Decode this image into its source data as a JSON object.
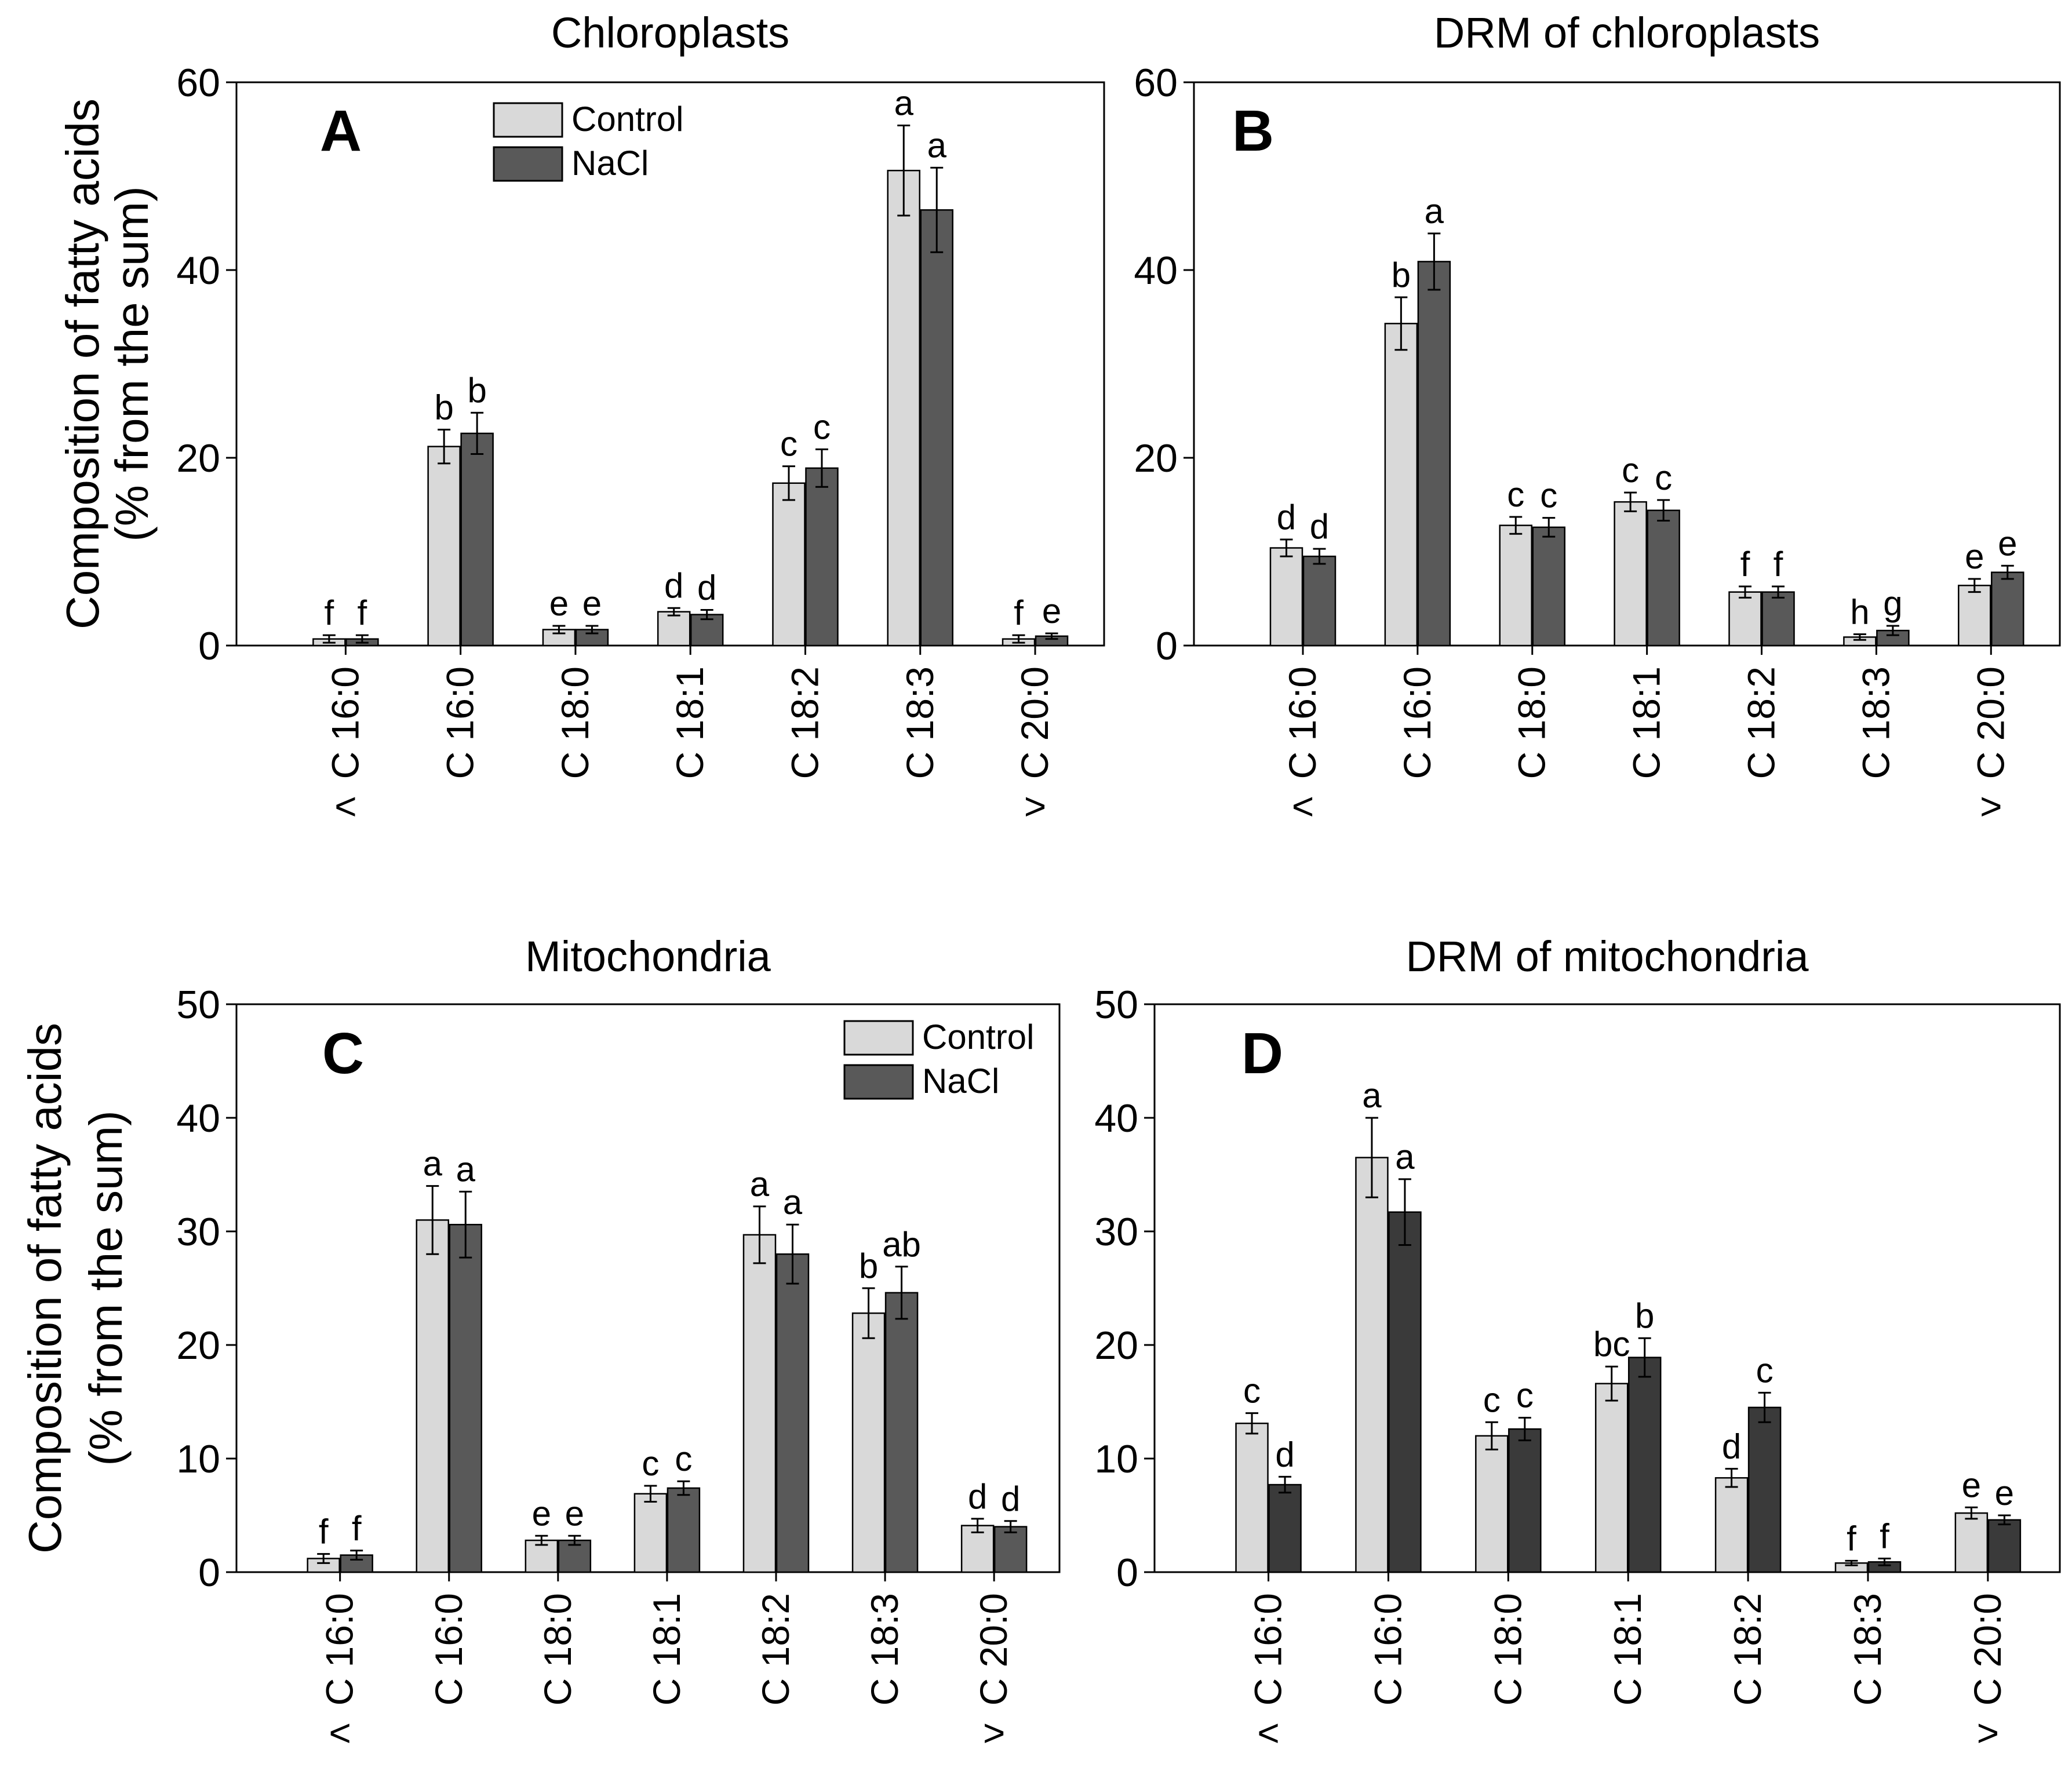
{
  "figure": {
    "ylabel_line1": "Composition of fatty acids",
    "ylabel_line2": "(% from the sum)",
    "colors": {
      "control": "#d9d9d9",
      "nacl": "#595959",
      "nacl_dark": "#3a3a3a"
    }
  },
  "chart_data": [
    {
      "panel": "A",
      "type": "bar",
      "title": "Chloroplasts",
      "ylabel": "Composition of fatty acids (% from the sum)",
      "ylim": [
        0,
        60
      ],
      "yticks": [
        0,
        20,
        40,
        60
      ],
      "categories": [
        "C 16:0",
        "C 16:0",
        "C 18:0",
        "C 18:1",
        "C 18:2",
        "C 18:3",
        "C 20:0"
      ],
      "category_marks": [
        "<",
        "",
        "",
        "",
        "",
        "",
        ">"
      ],
      "legend": [
        "Control",
        "NaCl"
      ],
      "series": [
        {
          "name": "Control",
          "values": [
            0.7,
            21.2,
            1.7,
            3.6,
            17.3,
            50.6,
            0.7
          ],
          "errors": [
            0.4,
            1.8,
            0.4,
            0.4,
            1.8,
            4.8,
            0.4
          ],
          "letters": [
            "f",
            "b",
            "e",
            "d",
            "c",
            "a",
            "f"
          ]
        },
        {
          "name": "NaCl",
          "values": [
            0.7,
            22.6,
            1.7,
            3.3,
            18.9,
            46.4,
            1.0
          ],
          "errors": [
            0.4,
            2.2,
            0.4,
            0.5,
            2.0,
            4.5,
            0.3
          ],
          "letters": [
            "f",
            "b",
            "e",
            "d",
            "c",
            "a",
            "e"
          ]
        }
      ]
    },
    {
      "panel": "B",
      "type": "bar",
      "title": "DRM of chloroplasts",
      "ylabel": "",
      "ylim": [
        0,
        60
      ],
      "yticks": [
        0,
        20,
        40,
        60
      ],
      "categories": [
        "C 16:0",
        "C 16:0",
        "C 18:0",
        "C 18:1",
        "C 18:2",
        "C 18:3",
        "C 20:0"
      ],
      "category_marks": [
        "<",
        "",
        "",
        "",
        "",
        "",
        ">"
      ],
      "legend": [],
      "series": [
        {
          "name": "Control",
          "values": [
            10.4,
            34.3,
            12.8,
            15.3,
            5.7,
            0.9,
            6.4
          ],
          "errors": [
            0.9,
            2.8,
            0.9,
            1.0,
            0.6,
            0.3,
            0.7
          ],
          "letters": [
            "d",
            "b",
            "c",
            "c",
            "f",
            "h",
            "e"
          ]
        },
        {
          "name": "NaCl",
          "values": [
            9.5,
            40.9,
            12.6,
            14.4,
            5.7,
            1.6,
            7.8
          ],
          "errors": [
            0.8,
            3.0,
            1.0,
            1.1,
            0.6,
            0.5,
            0.7
          ],
          "letters": [
            "d",
            "a",
            "c",
            "c",
            "f",
            "g",
            "e"
          ]
        }
      ]
    },
    {
      "panel": "C",
      "type": "bar",
      "title": "Mitochondria",
      "ylabel": "Composition of fatty acids (% from the sum)",
      "ylim": [
        0,
        50
      ],
      "yticks": [
        0,
        10,
        20,
        30,
        40,
        50
      ],
      "categories": [
        "C 16:0",
        "C 16:0",
        "C 18:0",
        "C 18:1",
        "C 18:2",
        "C 18:3",
        "C 20:0"
      ],
      "category_marks": [
        "<",
        "",
        "",
        "",
        "",
        "",
        ">"
      ],
      "legend": [
        "Control",
        "NaCl"
      ],
      "series": [
        {
          "name": "Control",
          "values": [
            1.2,
            31.0,
            2.8,
            6.9,
            29.7,
            22.8,
            4.1
          ],
          "errors": [
            0.4,
            3.0,
            0.4,
            0.7,
            2.5,
            2.2,
            0.6
          ],
          "letters": [
            "f",
            "a",
            "e",
            "c",
            "a",
            "b",
            "d"
          ]
        },
        {
          "name": "NaCl",
          "values": [
            1.5,
            30.6,
            2.8,
            7.4,
            28.0,
            24.6,
            4.0
          ],
          "errors": [
            0.4,
            2.9,
            0.4,
            0.6,
            2.6,
            2.3,
            0.5
          ],
          "letters": [
            "f",
            "a",
            "e",
            "c",
            "a",
            "ab",
            "d"
          ]
        }
      ]
    },
    {
      "panel": "D",
      "type": "bar",
      "title": "DRM of mitochondria",
      "ylabel": "",
      "ylim": [
        0,
        50
      ],
      "yticks": [
        0,
        10,
        20,
        30,
        40,
        50
      ],
      "categories": [
        "C 16:0",
        "C 16:0",
        "C 18:0",
        "C 18:1",
        "C 18:2",
        "C 18:3",
        "C 20:0"
      ],
      "category_marks": [
        "<",
        "",
        "",
        "",
        "",
        "",
        ">"
      ],
      "legend": [],
      "series": [
        {
          "name": "Control",
          "values": [
            13.1,
            36.5,
            12.0,
            16.6,
            8.3,
            0.8,
            5.2
          ],
          "errors": [
            0.9,
            3.5,
            1.2,
            1.5,
            0.8,
            0.2,
            0.5
          ],
          "letters": [
            "c",
            "a",
            "c",
            "bc",
            "d",
            "f",
            "e"
          ]
        },
        {
          "name": "NaCl",
          "values": [
            7.7,
            31.7,
            12.6,
            18.9,
            14.5,
            0.9,
            4.6
          ],
          "errors": [
            0.7,
            2.9,
            1.0,
            1.7,
            1.3,
            0.3,
            0.4
          ],
          "letters": [
            "d",
            "a",
            "c",
            "b",
            "c",
            "f",
            "e"
          ]
        }
      ]
    }
  ]
}
